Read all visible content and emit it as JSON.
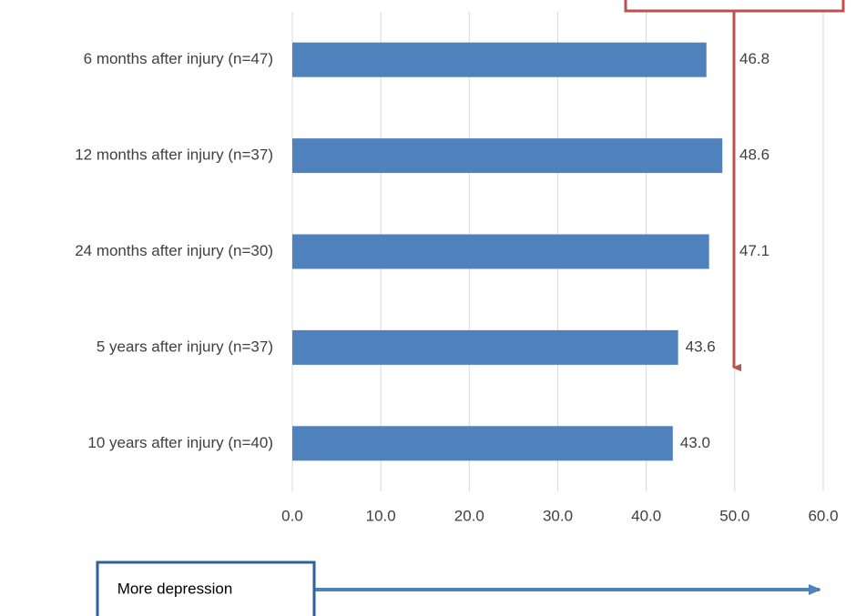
{
  "chart_data": {
    "type": "bar",
    "orientation": "horizontal",
    "categories": [
      "6 months after injury (n=47)",
      "12 months after injury (n=37)",
      "24 months after injury (n=30)",
      "5 years after injury (n=37)",
      "10 years after injury (n=40)"
    ],
    "values": [
      46.8,
      48.6,
      47.1,
      43.6,
      43.0
    ],
    "value_labels": [
      "46.8",
      "48.6",
      "47.1",
      "43.6",
      "43.0"
    ],
    "color": "#4f81bd",
    "xlim": [
      0,
      60
    ],
    "xticks": [
      {
        "value": 0,
        "label": "0.0"
      },
      {
        "value": 10,
        "label": "10.0"
      },
      {
        "value": 20,
        "label": "20.0"
      },
      {
        "value": 30,
        "label": "30.0"
      },
      {
        "value": 40,
        "label": "40.0"
      },
      {
        "value": 50,
        "label": "50.0"
      },
      {
        "value": 60,
        "label": "60.0"
      }
    ],
    "grid": true,
    "annotation": "More depression"
  }
}
